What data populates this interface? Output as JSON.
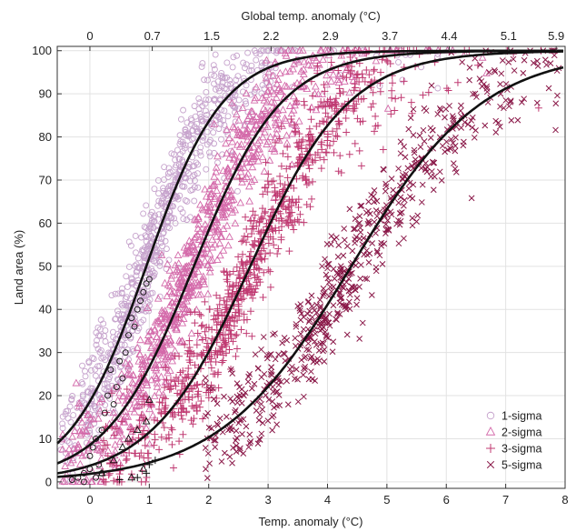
{
  "chart_data": {
    "type": "scatter",
    "title": "",
    "xlabel": "Temp. anomaly (°C)",
    "ylabel": "Land area (%)",
    "top_axis_label": "Global temp. anomaly (°C)",
    "xlim": [
      -0.55,
      8
    ],
    "ylim": [
      -1.5,
      101
    ],
    "x_ticks": [
      0,
      1,
      2,
      3,
      4,
      5,
      6,
      7,
      8
    ],
    "y_ticks": [
      0,
      10,
      20,
      30,
      40,
      50,
      60,
      70,
      80,
      90,
      100
    ],
    "top_ticks": [
      {
        "x": 0,
        "label": "0"
      },
      {
        "x": 1.05,
        "label": "0.7"
      },
      {
        "x": 2.05,
        "label": "1.5"
      },
      {
        "x": 3.05,
        "label": "2.2"
      },
      {
        "x": 4.05,
        "label": "2.9"
      },
      {
        "x": 5.05,
        "label": "3.7"
      },
      {
        "x": 6.05,
        "label": "4.4"
      },
      {
        "x": 7.05,
        "label": "5.1"
      },
      {
        "x": 7.85,
        "label": "5.9"
      }
    ],
    "grid": true,
    "legend_position": "bottom-right",
    "series": [
      {
        "name": "1-sigma",
        "marker": "circle",
        "color": "#c6a2cc",
        "fit_midpoint": 0.95,
        "fit_slope": 1.55,
        "spread": 0.35,
        "count": 900
      },
      {
        "name": "2-sigma",
        "marker": "triangle",
        "color": "#d46aaa",
        "fit_midpoint": 1.75,
        "fit_slope": 1.35,
        "spread": 0.45,
        "count": 900
      },
      {
        "name": "3-sigma",
        "marker": "plus",
        "color": "#c03a72",
        "fit_midpoint": 2.7,
        "fit_slope": 1.2,
        "spread": 0.55,
        "count": 900
      },
      {
        "name": "5-sigma",
        "marker": "cross",
        "color": "#8a1848",
        "fit_midpoint": 4.4,
        "fit_slope": 0.9,
        "spread": 0.7,
        "count": 650
      }
    ],
    "highlight_points": {
      "1-sigma": [
        [
          -0.3,
          0.5
        ],
        [
          -0.2,
          1
        ],
        [
          -0.1,
          2
        ],
        [
          0,
          3
        ],
        [
          0,
          6
        ],
        [
          0.05,
          8
        ],
        [
          0.1,
          10
        ],
        [
          0.15,
          4
        ],
        [
          0.2,
          12
        ],
        [
          0.25,
          16
        ],
        [
          0.3,
          20
        ],
        [
          0.35,
          26
        ],
        [
          0.4,
          18
        ],
        [
          0.45,
          22
        ],
        [
          0.5,
          28
        ],
        [
          0.55,
          24
        ],
        [
          0.6,
          30
        ],
        [
          0.65,
          34
        ],
        [
          0.7,
          38
        ],
        [
          0.75,
          36
        ],
        [
          0.8,
          40
        ],
        [
          0.85,
          42
        ],
        [
          0.9,
          44
        ],
        [
          0.95,
          46
        ],
        [
          1,
          47
        ],
        [
          -0.1,
          0
        ],
        [
          0.1,
          1
        ],
        [
          0.2,
          2
        ]
      ],
      "2-sigma": [
        [
          0.2,
          2
        ],
        [
          0.4,
          5
        ],
        [
          0.55,
          8
        ],
        [
          0.65,
          10
        ],
        [
          0.8,
          12
        ],
        [
          0.95,
          14
        ],
        [
          1.0,
          19
        ],
        [
          0.7,
          1
        ],
        [
          0.9,
          3
        ]
      ],
      "3-sigma": [
        [
          0.5,
          0.5
        ],
        [
          0.8,
          1
        ],
        [
          0.95,
          2
        ],
        [
          1.0,
          4
        ],
        [
          1.1,
          5
        ]
      ]
    }
  }
}
